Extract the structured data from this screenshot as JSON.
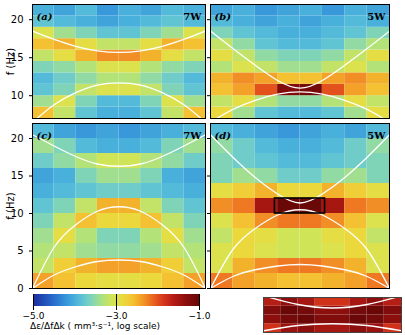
{
  "chart_data": {
    "type": "heatmap",
    "colorbar": {
      "label": "Δε/ΔfΔk ( mm³·s⁻¹, log scale)",
      "lim": [
        -5,
        -1
      ],
      "ticks": [
        -5,
        -3,
        -1
      ]
    },
    "panels": [
      {
        "title": "(a)",
        "annotation": "7W",
        "y_label": "f (Hz)",
        "tick_labels": "y",
        "xlim": [
          0,
          1
        ],
        "ylim": [
          7,
          22
        ],
        "yticks": [
          10,
          15,
          20
        ],
        "x_edges": [
          0,
          0.125,
          0.25,
          0.375,
          0.5,
          0.625,
          0.75,
          0.875,
          1
        ],
        "y_edges": [
          7,
          8.5,
          10,
          11.5,
          13,
          14.5,
          16,
          17.5,
          19,
          20.5,
          22
        ],
        "cells": [
          [
            -2.6,
            -3.2,
            -3.8,
            -4.0,
            -4.0,
            -3.8,
            -3.2,
            -2.6
          ],
          [
            -3.4,
            -3.0,
            -3.6,
            -3.9,
            -3.9,
            -3.6,
            -3.0,
            -3.4
          ],
          [
            -3.8,
            -3.6,
            -3.2,
            -3.0,
            -3.0,
            -3.2,
            -3.6,
            -3.8
          ],
          [
            -3.9,
            -3.7,
            -3.5,
            -3.3,
            -3.3,
            -3.5,
            -3.7,
            -3.9
          ],
          [
            -3.6,
            -3.5,
            -3.3,
            -3.0,
            -3.0,
            -3.3,
            -3.5,
            -3.6
          ],
          [
            -3.2,
            -2.9,
            -2.5,
            -2.3,
            -2.3,
            -2.5,
            -2.9,
            -3.2
          ],
          [
            -2.6,
            -2.5,
            -2.9,
            -3.2,
            -3.2,
            -2.9,
            -2.5,
            -2.6
          ],
          [
            -3.0,
            -3.4,
            -3.6,
            -3.8,
            -3.8,
            -3.6,
            -3.4,
            -3.0
          ],
          [
            -3.8,
            -3.9,
            -4.0,
            -4.1,
            -4.0,
            -3.9,
            -3.8,
            -3.9
          ],
          [
            -4.0,
            -4.1,
            -3.9,
            -4.2,
            -4.0,
            -4.1,
            -3.9,
            -4.0
          ]
        ],
        "curves": {
          "x": [
            0,
            0.125,
            0.25,
            0.375,
            0.5,
            0.625,
            0.75,
            0.875,
            1
          ],
          "values": [
            [
              18.5,
              17.4,
              16.5,
              15.9,
              15.7,
              15.9,
              16.5,
              17.4,
              18.5
            ],
            [
              6.5,
              8.8,
              10.4,
              11.4,
              11.7,
              11.4,
              10.4,
              8.8,
              6.5
            ]
          ]
        }
      },
      {
        "title": "(b)",
        "annotation": "5W",
        "tick_labels": false,
        "xlim": [
          0,
          1
        ],
        "ylim": [
          7,
          22
        ],
        "yticks": [
          10,
          15,
          20
        ],
        "x_edges": [
          0,
          0.125,
          0.25,
          0.375,
          0.5,
          0.625,
          0.75,
          0.875,
          1
        ],
        "y_edges": [
          7,
          8.5,
          10,
          11.5,
          13,
          14.5,
          16,
          17.5,
          19,
          20.5,
          22
        ],
        "cells": [
          [
            -2.8,
            -3.4,
            -3.8,
            -3.9,
            -3.9,
            -3.8,
            -3.4,
            -2.9
          ],
          [
            -3.2,
            -2.9,
            -3.3,
            -3.5,
            -3.5,
            -3.3,
            -2.9,
            -3.2
          ],
          [
            -2.6,
            -2.4,
            -2.0,
            -1.2,
            -1.1,
            -2.0,
            -2.4,
            -2.6
          ],
          [
            -2.5,
            -2.3,
            -2.4,
            -2.6,
            -2.6,
            -2.4,
            -2.3,
            -2.5
          ],
          [
            -3.3,
            -3.0,
            -3.2,
            -3.4,
            -3.4,
            -3.2,
            -3.0,
            -3.3
          ],
          [
            -2.9,
            -3.2,
            -3.5,
            -3.6,
            -3.6,
            -3.5,
            -3.2,
            -2.9
          ],
          [
            -3.2,
            -3.5,
            -3.8,
            -3.9,
            -3.9,
            -3.8,
            -3.5,
            -3.3
          ],
          [
            -3.6,
            -3.8,
            -3.9,
            -4.0,
            -4.0,
            -3.9,
            -3.8,
            -3.6
          ],
          [
            -3.9,
            -4.0,
            -4.1,
            -4.0,
            -4.1,
            -4.0,
            -3.9,
            -4.0
          ],
          [
            -4.1,
            -4.0,
            -4.2,
            -4.1,
            -4.0,
            -4.2,
            -4.0,
            -4.1
          ]
        ],
        "curves": {
          "x": [
            0,
            0.125,
            0.25,
            0.375,
            0.5,
            0.625,
            0.75,
            0.875,
            1
          ],
          "values": [
            [
              18.5,
              16.2,
              14.0,
              12.0,
              11.0,
              12.0,
              14.0,
              16.2,
              18.5
            ],
            [
              6.5,
              8.2,
              9.4,
              10.2,
              10.5,
              10.2,
              9.4,
              8.2,
              6.5
            ]
          ]
        }
      },
      {
        "title": "(c)",
        "annotation": "7W",
        "y_label": "f (Hz)",
        "tick_labels": "y",
        "xlim": [
          0,
          1
        ],
        "ylim": [
          0,
          22
        ],
        "yticks": [
          0,
          5,
          10,
          15,
          20
        ],
        "x_edges": [
          0,
          0.125,
          0.25,
          0.375,
          0.5,
          0.625,
          0.75,
          0.875,
          1
        ],
        "y_edges": [
          0,
          2,
          4,
          6,
          8,
          10,
          12,
          14,
          16,
          18,
          20,
          22
        ],
        "cells": [
          [
            -2.4,
            -2.6,
            -2.8,
            -2.9,
            -2.9,
            -2.8,
            -2.6,
            -2.4
          ],
          [
            -3.2,
            -2.7,
            -2.5,
            -2.4,
            -2.4,
            -2.5,
            -2.7,
            -3.2
          ],
          [
            -3.3,
            -3.2,
            -3.4,
            -3.5,
            -3.5,
            -3.4,
            -3.2,
            -3.3
          ],
          [
            -3.4,
            -2.9,
            -3.3,
            -3.6,
            -3.6,
            -3.3,
            -2.9,
            -3.4
          ],
          [
            -3.6,
            -3.2,
            -2.6,
            -2.8,
            -2.8,
            -2.6,
            -3.2,
            -3.6
          ],
          [
            -3.8,
            -3.6,
            -3.2,
            -2.5,
            -2.5,
            -3.2,
            -3.6,
            -3.8
          ],
          [
            -4.0,
            -3.9,
            -3.8,
            -3.7,
            -3.7,
            -3.8,
            -3.9,
            -4.0
          ],
          [
            -4.1,
            -4.0,
            -3.6,
            -3.4,
            -3.4,
            -3.6,
            -4.0,
            -4.1
          ],
          [
            -3.7,
            -3.5,
            -3.3,
            -3.1,
            -3.1,
            -3.3,
            -3.5,
            -3.7
          ],
          [
            -3.4,
            -3.6,
            -3.9,
            -4.0,
            -4.0,
            -3.9,
            -3.6,
            -3.4
          ],
          [
            -3.9,
            -4.1,
            -4.2,
            -4.1,
            -4.2,
            -4.1,
            -4.0,
            -3.9
          ]
        ],
        "curves": {
          "x": [
            0,
            0.125,
            0.25,
            0.375,
            0.5,
            0.625,
            0.75,
            0.875,
            1
          ],
          "values": [
            [
              20.5,
              19.0,
              17.6,
              16.6,
              16.3,
              16.6,
              17.6,
              19.0,
              20.5
            ],
            [
              0,
              5.5,
              8.5,
              10.3,
              10.9,
              10.3,
              8.5,
              5.5,
              0
            ],
            [
              0,
              1.8,
              2.9,
              3.6,
              3.8,
              3.6,
              2.9,
              1.8,
              0
            ]
          ]
        }
      },
      {
        "title": "(d)",
        "annotation": "5W",
        "tick_labels": false,
        "xlim": [
          0,
          1
        ],
        "ylim": [
          0,
          22
        ],
        "yticks": [
          0,
          5,
          10,
          15,
          20
        ],
        "x_edges": [
          0,
          0.125,
          0.25,
          0.375,
          0.5,
          0.625,
          0.75,
          0.875,
          1
        ],
        "y_edges": [
          0,
          2,
          4,
          6,
          8,
          10,
          12,
          14,
          16,
          18,
          20,
          22
        ],
        "cells": [
          [
            -2.2,
            -2.4,
            -2.5,
            -2.6,
            -2.6,
            -2.5,
            -2.4,
            -2.2
          ],
          [
            -3.0,
            -2.5,
            -2.3,
            -2.2,
            -2.2,
            -2.3,
            -2.5,
            -3.0
          ],
          [
            -3.0,
            -2.8,
            -3.0,
            -3.1,
            -3.1,
            -3.0,
            -2.8,
            -3.0
          ],
          [
            -3.2,
            -2.8,
            -2.9,
            -3.1,
            -3.1,
            -2.9,
            -2.8,
            -3.2
          ],
          [
            -3.0,
            -2.6,
            -2.3,
            -2.2,
            -2.2,
            -2.3,
            -2.6,
            -3.0
          ],
          [
            -2.3,
            -2.2,
            -1.5,
            -1.0,
            -1.0,
            -1.5,
            -2.2,
            -2.3
          ],
          [
            -2.9,
            -2.7,
            -2.5,
            -2.8,
            -2.8,
            -2.5,
            -2.7,
            -2.9
          ],
          [
            -3.6,
            -3.4,
            -3.5,
            -3.7,
            -3.7,
            -3.5,
            -3.4,
            -3.6
          ],
          [
            -3.6,
            -3.7,
            -3.8,
            -3.9,
            -3.9,
            -3.8,
            -3.7,
            -3.6
          ],
          [
            -3.5,
            -3.7,
            -3.9,
            -4.0,
            -4.0,
            -3.9,
            -3.7,
            -3.5
          ],
          [
            -3.9,
            -4.0,
            -4.1,
            -4.2,
            -4.1,
            -4.0,
            -4.1,
            -3.9
          ]
        ],
        "box": {
          "x": [
            0.36,
            0.64
          ],
          "y": [
            10,
            12
          ]
        },
        "curves": {
          "x": [
            0,
            0.125,
            0.25,
            0.375,
            0.5,
            0.625,
            0.75,
            0.875,
            1
          ],
          "values": [
            [
              20.5,
              17.5,
              14.8,
              12.6,
              11.4,
              12.6,
              14.8,
              17.5,
              20.5
            ],
            [
              0,
              5.2,
              8.0,
              9.8,
              10.5,
              9.8,
              8.0,
              5.2,
              0
            ],
            [
              0,
              1.6,
              2.5,
              3.0,
              3.2,
              3.0,
              2.5,
              1.6,
              0
            ]
          ]
        }
      }
    ],
    "inset": {
      "tick_labels": false,
      "xlim": [
        0.36,
        0.64
      ],
      "ylim": [
        10,
        12
      ],
      "x_edges": [
        0.36,
        0.395,
        0.43,
        0.465,
        0.5,
        0.535,
        0.57,
        0.605,
        0.64
      ],
      "y_edges": [
        10,
        10.5,
        11,
        11.5,
        12
      ],
      "cells": [
        [
          -1.8,
          -1.4,
          -1.3,
          -1.5,
          -1.5,
          -1.3,
          -1.4,
          -1.8
        ],
        [
          -1.3,
          -1.1,
          -1.0,
          -1.2,
          -1.2,
          -1.0,
          -1.1,
          -1.3
        ],
        [
          -1.2,
          -1.0,
          -1.1,
          -1.3,
          -1.3,
          -1.1,
          -1.0,
          -1.2
        ],
        [
          -1.6,
          -1.3,
          -1.5,
          -1.8,
          -1.8,
          -1.5,
          -1.3,
          -1.6
        ]
      ],
      "curves": {
        "x": [
          0.36,
          0.43,
          0.5,
          0.57,
          0.64
        ],
        "values": [
          [
            12.1,
            11.6,
            11.4,
            11.6,
            12.1
          ],
          [
            10.1,
            10.4,
            10.5,
            10.4,
            10.1
          ]
        ]
      }
    }
  }
}
